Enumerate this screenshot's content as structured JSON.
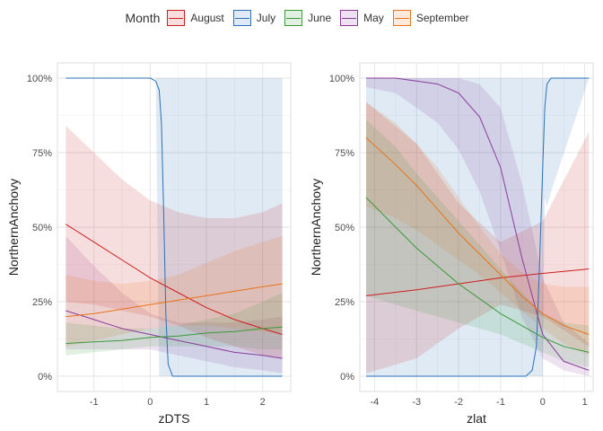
{
  "legend": {
    "title": "Month",
    "entries": [
      {
        "label": "August",
        "color": "#cc1f1f"
      },
      {
        "label": "July",
        "color": "#2a6fba"
      },
      {
        "label": "June",
        "color": "#3a9a3a"
      },
      {
        "label": "May",
        "color": "#8a3b9a"
      },
      {
        "label": "September",
        "color": "#e8731a"
      }
    ]
  },
  "chart_data": [
    {
      "type": "line",
      "xlabel": "zDTS",
      "ylabel": "NorthernAnchovy",
      "xlim": [
        -1.65,
        2.5
      ],
      "ylim": [
        0,
        1
      ],
      "xticks": [
        -1,
        0,
        1,
        2
      ],
      "xtick_labels": [
        "-1",
        "0",
        "1",
        "2"
      ],
      "yticks": [
        0,
        0.25,
        0.5,
        0.75,
        1
      ],
      "ytick_labels": [
        "0%",
        "25%",
        "50%",
        "75%",
        "100%"
      ],
      "grid": true,
      "series": [
        {
          "name": "July",
          "color": "#2a6fba",
          "x": [
            -1.5,
            0.0,
            0.1,
            0.16,
            0.2,
            0.24,
            0.28,
            0.32,
            0.4,
            2.35
          ],
          "y": [
            1.0,
            1.0,
            0.99,
            0.96,
            0.85,
            0.55,
            0.2,
            0.04,
            0.0,
            0.0
          ],
          "lower": [
            1.0,
            1.0,
            1.0,
            0.0,
            0.0,
            0.0,
            0.0,
            0.0,
            0.0,
            0.0
          ],
          "upper": [
            1.0,
            1.0,
            1.0,
            1.0,
            1.0,
            1.0,
            1.0,
            1.0,
            1.0,
            1.0
          ]
        },
        {
          "name": "August",
          "color": "#cc1f1f",
          "x": [
            -1.5,
            -1.0,
            -0.5,
            0.0,
            0.5,
            1.0,
            1.5,
            2.0,
            2.35
          ],
          "y": [
            0.51,
            0.45,
            0.39,
            0.33,
            0.28,
            0.23,
            0.19,
            0.16,
            0.14
          ],
          "lower": [
            0.25,
            0.24,
            0.22,
            0.2,
            0.17,
            0.13,
            0.1,
            0.07,
            0.06
          ],
          "upper": [
            0.84,
            0.75,
            0.66,
            0.59,
            0.55,
            0.53,
            0.53,
            0.55,
            0.58
          ]
        },
        {
          "name": "June",
          "color": "#3a9a3a",
          "x": [
            -1.5,
            -1.0,
            -0.5,
            0.0,
            0.5,
            1.0,
            1.5,
            2.0,
            2.35
          ],
          "y": [
            0.11,
            0.115,
            0.12,
            0.13,
            0.135,
            0.145,
            0.15,
            0.16,
            0.165
          ],
          "lower": [
            0.07,
            0.08,
            0.09,
            0.1,
            0.1,
            0.1,
            0.1,
            0.09,
            0.09
          ],
          "upper": [
            0.18,
            0.17,
            0.16,
            0.16,
            0.17,
            0.19,
            0.21,
            0.25,
            0.28
          ]
        },
        {
          "name": "May",
          "color": "#8a3b9a",
          "x": [
            -1.5,
            -1.0,
            -0.5,
            0.0,
            0.5,
            1.0,
            1.5,
            2.0,
            2.35
          ],
          "y": [
            0.22,
            0.19,
            0.16,
            0.14,
            0.12,
            0.1,
            0.08,
            0.07,
            0.06
          ],
          "lower": [
            0.09,
            0.09,
            0.09,
            0.09,
            0.07,
            0.05,
            0.03,
            0.02,
            0.01
          ],
          "upper": [
            0.47,
            0.37,
            0.28,
            0.21,
            0.18,
            0.18,
            0.18,
            0.19,
            0.2
          ]
        },
        {
          "name": "September",
          "color": "#e8731a",
          "x": [
            -1.5,
            -1.0,
            -0.5,
            0.0,
            0.5,
            1.0,
            1.5,
            2.0,
            2.35
          ],
          "y": [
            0.2,
            0.21,
            0.225,
            0.24,
            0.255,
            0.27,
            0.285,
            0.3,
            0.31
          ],
          "lower": [
            0.1,
            0.12,
            0.14,
            0.16,
            0.17,
            0.17,
            0.16,
            0.15,
            0.14
          ],
          "upper": [
            0.34,
            0.32,
            0.31,
            0.32,
            0.34,
            0.38,
            0.42,
            0.45,
            0.47
          ]
        }
      ]
    },
    {
      "type": "line",
      "xlabel": "zlat",
      "ylabel": "NorthernAnchovy",
      "xlim": [
        -4.35,
        1.2
      ],
      "ylim": [
        0,
        1
      ],
      "xticks": [
        -4,
        -3,
        -2,
        -1,
        0,
        1
      ],
      "xtick_labels": [
        "-4",
        "-3",
        "-2",
        "-1",
        "0",
        "1"
      ],
      "yticks": [
        0,
        0.25,
        0.5,
        0.75,
        1
      ],
      "ytick_labels": [
        "0%",
        "25%",
        "50%",
        "75%",
        "100%"
      ],
      "grid": true,
      "series": [
        {
          "name": "July",
          "color": "#2a6fba",
          "x": [
            -4.2,
            -0.4,
            -0.25,
            -0.15,
            -0.08,
            0.0,
            0.05,
            0.1,
            0.2,
            1.1
          ],
          "y": [
            0.0,
            0.0,
            0.02,
            0.1,
            0.35,
            0.7,
            0.9,
            0.98,
            1.0,
            1.0
          ],
          "lower": [
            0.0,
            0.0,
            0.0,
            0.0,
            0.0,
            0.0,
            0.6,
            0.57,
            0.62,
            1.0
          ],
          "upper": [
            1.0,
            1.0,
            1.0,
            1.0,
            1.0,
            1.0,
            1.0,
            1.0,
            1.0,
            1.0
          ]
        },
        {
          "name": "August",
          "color": "#cc1f1f",
          "x": [
            -4.2,
            -3.0,
            -2.0,
            -1.0,
            0.0,
            1.1
          ],
          "y": [
            0.27,
            0.29,
            0.31,
            0.33,
            0.345,
            0.36
          ],
          "lower": [
            0.01,
            0.06,
            0.16,
            0.24,
            0.2,
            0.1
          ],
          "upper": [
            0.92,
            0.78,
            0.58,
            0.45,
            0.52,
            0.82
          ]
        },
        {
          "name": "June",
          "color": "#3a9a3a",
          "x": [
            -4.2,
            -3.5,
            -3.0,
            -2.5,
            -2.0,
            -1.5,
            -1.0,
            -0.5,
            0.0,
            0.5,
            1.1
          ],
          "y": [
            0.6,
            0.5,
            0.43,
            0.37,
            0.31,
            0.26,
            0.21,
            0.17,
            0.13,
            0.1,
            0.08
          ],
          "lower": [
            0.27,
            0.24,
            0.22,
            0.2,
            0.18,
            0.16,
            0.14,
            0.11,
            0.08,
            0.05,
            0.03
          ],
          "upper": [
            0.86,
            0.77,
            0.68,
            0.6,
            0.52,
            0.44,
            0.36,
            0.28,
            0.21,
            0.18,
            0.17
          ]
        },
        {
          "name": "May",
          "color": "#8a3b9a",
          "x": [
            -4.2,
            -3.5,
            -3.0,
            -2.5,
            -2.0,
            -1.5,
            -1.0,
            -0.5,
            0.0,
            0.5,
            1.1
          ],
          "y": [
            1.0,
            1.0,
            0.99,
            0.98,
            0.95,
            0.87,
            0.7,
            0.4,
            0.14,
            0.05,
            0.02
          ],
          "lower": [
            0.97,
            0.95,
            0.9,
            0.85,
            0.76,
            0.62,
            0.42,
            0.2,
            0.06,
            0.02,
            0.0
          ],
          "upper": [
            1.0,
            1.0,
            1.0,
            1.0,
            1.0,
            0.98,
            0.9,
            0.65,
            0.33,
            0.18,
            0.11
          ]
        },
        {
          "name": "September",
          "color": "#e8731a",
          "x": [
            -4.2,
            -3.5,
            -3.0,
            -2.5,
            -2.0,
            -1.5,
            -1.0,
            -0.5,
            0.0,
            0.5,
            1.1
          ],
          "y": [
            0.8,
            0.71,
            0.64,
            0.56,
            0.48,
            0.41,
            0.34,
            0.27,
            0.21,
            0.17,
            0.14
          ],
          "lower": [
            0.57,
            0.53,
            0.49,
            0.44,
            0.39,
            0.34,
            0.28,
            0.22,
            0.16,
            0.11,
            0.07
          ],
          "upper": [
            0.92,
            0.85,
            0.78,
            0.7,
            0.6,
            0.5,
            0.41,
            0.35,
            0.31,
            0.3,
            0.3
          ]
        }
      ]
    }
  ]
}
